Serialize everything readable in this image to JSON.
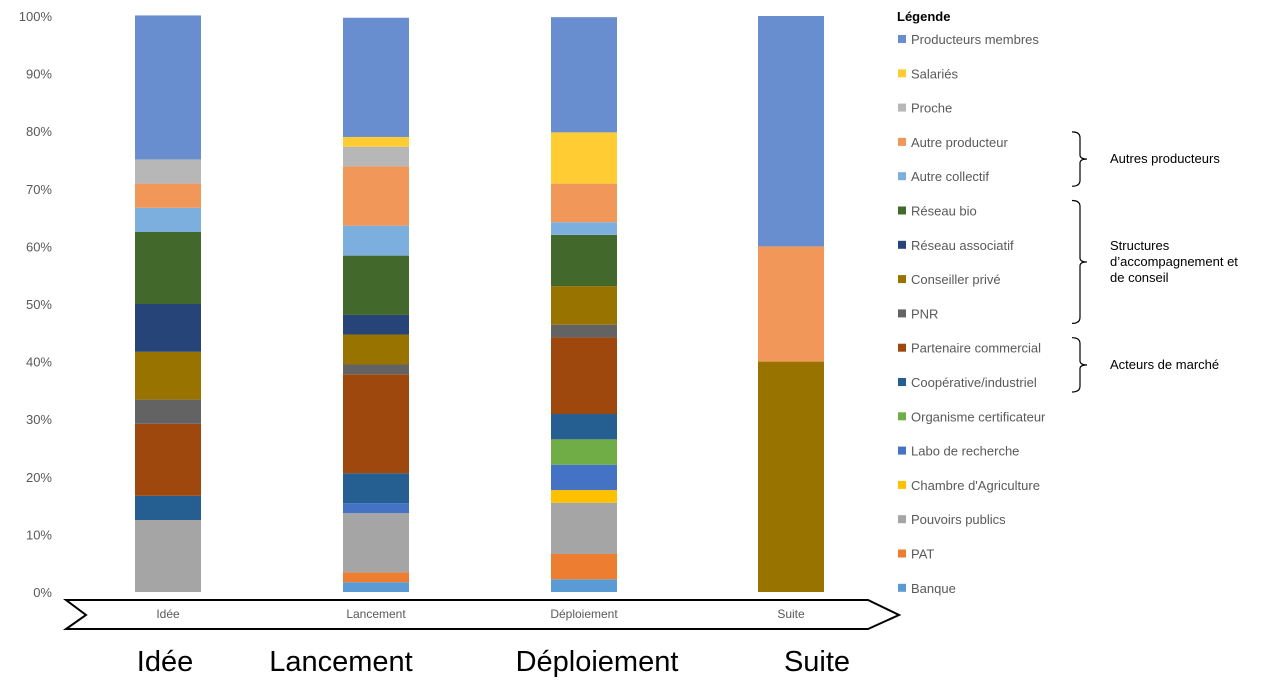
{
  "chart_data": {
    "type": "bar",
    "stacked": true,
    "percent": true,
    "categories": [
      "Idée",
      "Lancement",
      "Déploiement",
      "Suite"
    ],
    "y_ticks": [
      "0%",
      "10%",
      "20%",
      "30%",
      "40%",
      "50%",
      "60%",
      "70%",
      "80%",
      "90%",
      "100%"
    ],
    "ylim": [
      0,
      100
    ],
    "grid": false,
    "legend_title": "Légende",
    "legend_position": "right",
    "series": [
      {
        "name": "Banque",
        "color": "#5b9bd5",
        "values": [
          0,
          1.7,
          2.2,
          0
        ]
      },
      {
        "name": "PAT",
        "color": "#ed7d31",
        "values": [
          0,
          1.7,
          4.4,
          0
        ]
      },
      {
        "name": "Pouvoirs publics",
        "color": "#a5a5a5",
        "values": [
          12.5,
          10.3,
          8.9,
          0
        ]
      },
      {
        "name": "Chambre d'Agriculture",
        "color": "#ffc000",
        "values": [
          0,
          0,
          2.2,
          0
        ]
      },
      {
        "name": "Labo de recherche",
        "color": "#4472c4",
        "values": [
          0,
          1.7,
          4.4,
          0
        ]
      },
      {
        "name": "Organisme certificateur",
        "color": "#70ad47",
        "values": [
          0,
          0,
          4.4,
          0
        ]
      },
      {
        "name": "Coopérative/industriel",
        "color": "#255e91",
        "values": [
          4.2,
          5.2,
          4.4,
          0
        ]
      },
      {
        "name": "Partenaire commercial",
        "color": "#9e480e",
        "values": [
          12.5,
          17.2,
          13.3,
          0
        ]
      },
      {
        "name": "PNR",
        "color": "#636363",
        "values": [
          4.2,
          1.7,
          2.2,
          0
        ]
      },
      {
        "name": "Conseiller privé",
        "color": "#997300",
        "values": [
          8.3,
          5.2,
          6.7,
          40
        ]
      },
      {
        "name": "Réseau associatif",
        "color": "#264478",
        "values": [
          8.3,
          3.4,
          0,
          0
        ]
      },
      {
        "name": "Réseau bio",
        "color": "#43682b",
        "values": [
          12.5,
          10.3,
          8.9,
          0
        ]
      },
      {
        "name": "Autre collectif",
        "color": "#7cafdd",
        "values": [
          4.2,
          5.2,
          2.2,
          0
        ]
      },
      {
        "name": "Autre producteur",
        "color": "#f1975a",
        "values": [
          4.2,
          10.3,
          6.7,
          20
        ]
      },
      {
        "name": "Proche",
        "color": "#b7b7b7",
        "values": [
          4.2,
          3.4,
          0,
          0
        ]
      },
      {
        "name": "Salariés",
        "color": "#ffcd33",
        "values": [
          0,
          1.7,
          8.9,
          0
        ]
      },
      {
        "name": "Producteurs membres",
        "color": "#698ed0",
        "values": [
          25,
          20.7,
          20,
          40
        ]
      }
    ],
    "legend_groups": [
      {
        "label_lines": [
          "Autres producteurs"
        ],
        "from": "Autre producteur",
        "to": "Autre collectif"
      },
      {
        "label_lines": [
          "Structures",
          "d’accompagnement et",
          "de conseil"
        ],
        "from": "Réseau bio",
        "to": "PNR"
      },
      {
        "label_lines": [
          "Acteurs de marché"
        ],
        "from": "Partenaire commercial",
        "to": "Coopérative/industriel"
      }
    ]
  },
  "timeline_labels": [
    "Idée",
    "Lancement",
    "Déploiement",
    "Suite"
  ]
}
